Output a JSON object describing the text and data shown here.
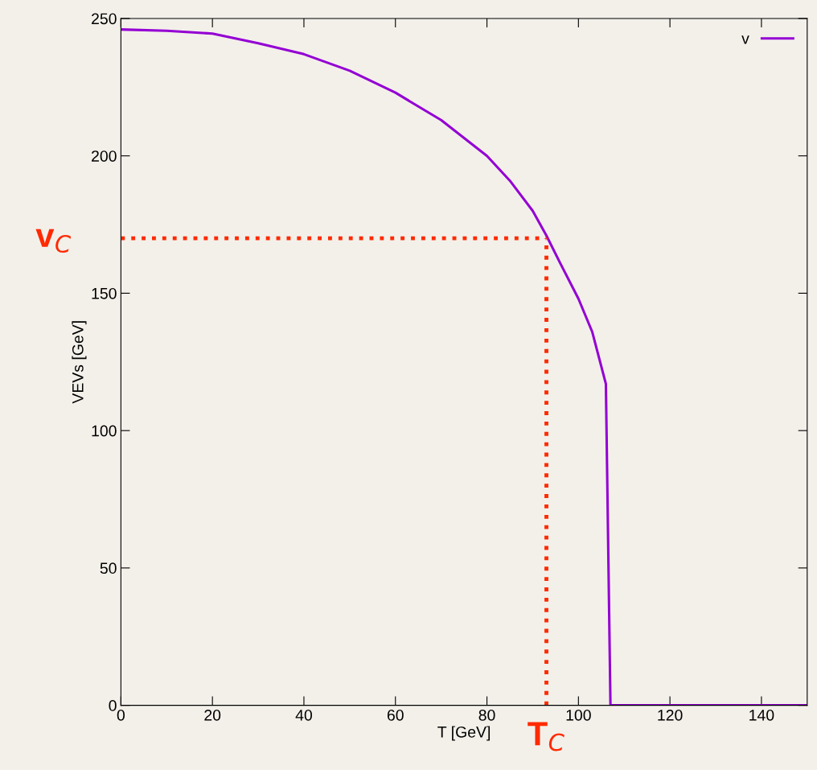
{
  "chart_data": {
    "type": "line",
    "xlabel": "T [GeV]",
    "ylabel": "VEVs [GeV]",
    "xlim": [
      0,
      150
    ],
    "ylim": [
      0,
      250
    ],
    "xticks": [
      0,
      20,
      40,
      60,
      80,
      100,
      120,
      140
    ],
    "yticks": [
      0,
      50,
      100,
      150,
      200,
      250
    ],
    "series": [
      {
        "name": "v",
        "color": "#9400d3",
        "x": [
          0,
          10,
          20,
          30,
          40,
          50,
          60,
          70,
          80,
          85,
          90,
          93,
          96,
          100,
          103,
          106,
          107,
          150
        ],
        "values": [
          246,
          245.5,
          244.5,
          241,
          237,
          231,
          223,
          213,
          200,
          191,
          180,
          171,
          161,
          148,
          136,
          117,
          0,
          0
        ]
      }
    ],
    "ref_lines": [
      {
        "axis": "x",
        "value": 93,
        "label": "T$_{C}$",
        "color": "#ff2a00",
        "line_style": "dotted"
      },
      {
        "axis": "y",
        "value": 170,
        "label": "v$_{C}$",
        "color": "#ff2a00",
        "line_style": "dotted"
      }
    ],
    "legend": "top right",
    "grid": false,
    "marker": "none",
    "line_style": "solid"
  }
}
